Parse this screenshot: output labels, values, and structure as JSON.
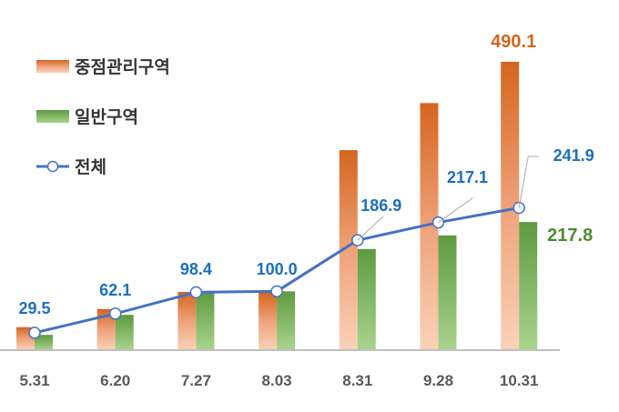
{
  "chart_data": {
    "type": "bar+line",
    "categories": [
      "5.31",
      "6.20",
      "7.27",
      "8.03",
      "8.31",
      "9.28",
      "10.31"
    ],
    "series": [
      {
        "name": "중점관리구역",
        "kind": "bar",
        "color": "#d5651f",
        "values": [
          39,
          70,
          99,
          99,
          340,
          420,
          490.1
        ]
      },
      {
        "name": "일반구역",
        "kind": "bar",
        "color": "#5e9a40",
        "values": [
          26,
          60,
          99,
          100,
          172,
          195,
          217.8
        ]
      },
      {
        "name": "전체",
        "kind": "line",
        "color": "#4472c4",
        "values": [
          29.5,
          62.1,
          98.4,
          100.0,
          186.9,
          217.1,
          241.9
        ]
      }
    ],
    "data_labels": {
      "line": [
        "29.5",
        "62.1",
        "98.4",
        "100.0",
        "186.9",
        "217.1",
        "241.9"
      ],
      "bar_last_orange": "490.1",
      "bar_last_green": "217.8"
    },
    "label_colors": {
      "line": "#1a6fbf",
      "orange": "#d2661f",
      "green": "#4e8a32",
      "axis": "#595959"
    },
    "legend_placement": "top-left",
    "grid": false,
    "ylim": [
      0,
      520
    ]
  }
}
